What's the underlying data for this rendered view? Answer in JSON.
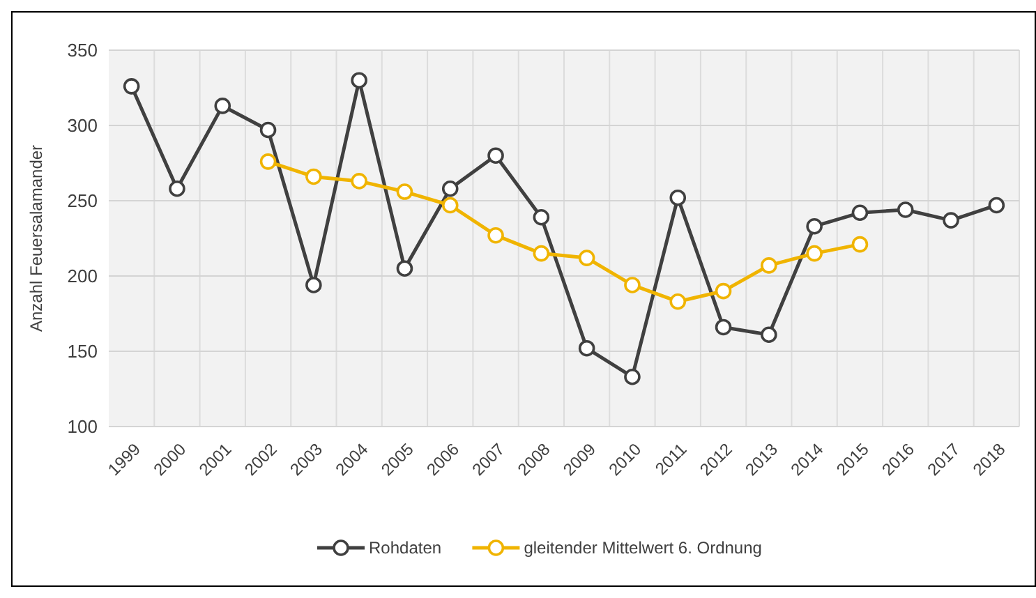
{
  "chart_data": {
    "type": "line",
    "ylabel": "Anzahl Feuersalamander",
    "categories": [
      "1999",
      "2000",
      "2001",
      "2002",
      "2003",
      "2004",
      "2005",
      "2006",
      "2007",
      "2008",
      "2009",
      "2010",
      "2011",
      "2012",
      "2013",
      "2014",
      "2015",
      "2016",
      "2017",
      "2018"
    ],
    "series": [
      {
        "name": "Rohdaten",
        "color": "#404040",
        "values": [
          326,
          258,
          313,
          297,
          194,
          330,
          205,
          258,
          280,
          239,
          152,
          133,
          252,
          166,
          161,
          233,
          242,
          244,
          237,
          247
        ]
      },
      {
        "name": "gleitender Mittelwert 6. Ordnung",
        "color": "#f0b400",
        "values": [
          null,
          null,
          null,
          276,
          266,
          263,
          256,
          247,
          227,
          215,
          212,
          194,
          183,
          190,
          207,
          215,
          221,
          null,
          null,
          null
        ]
      }
    ],
    "ylim": [
      100,
      350
    ],
    "yticks": [
      100,
      150,
      200,
      250,
      300,
      350
    ],
    "grid": true,
    "legend": "bottom",
    "marker": "circle",
    "line_style": "solid"
  }
}
